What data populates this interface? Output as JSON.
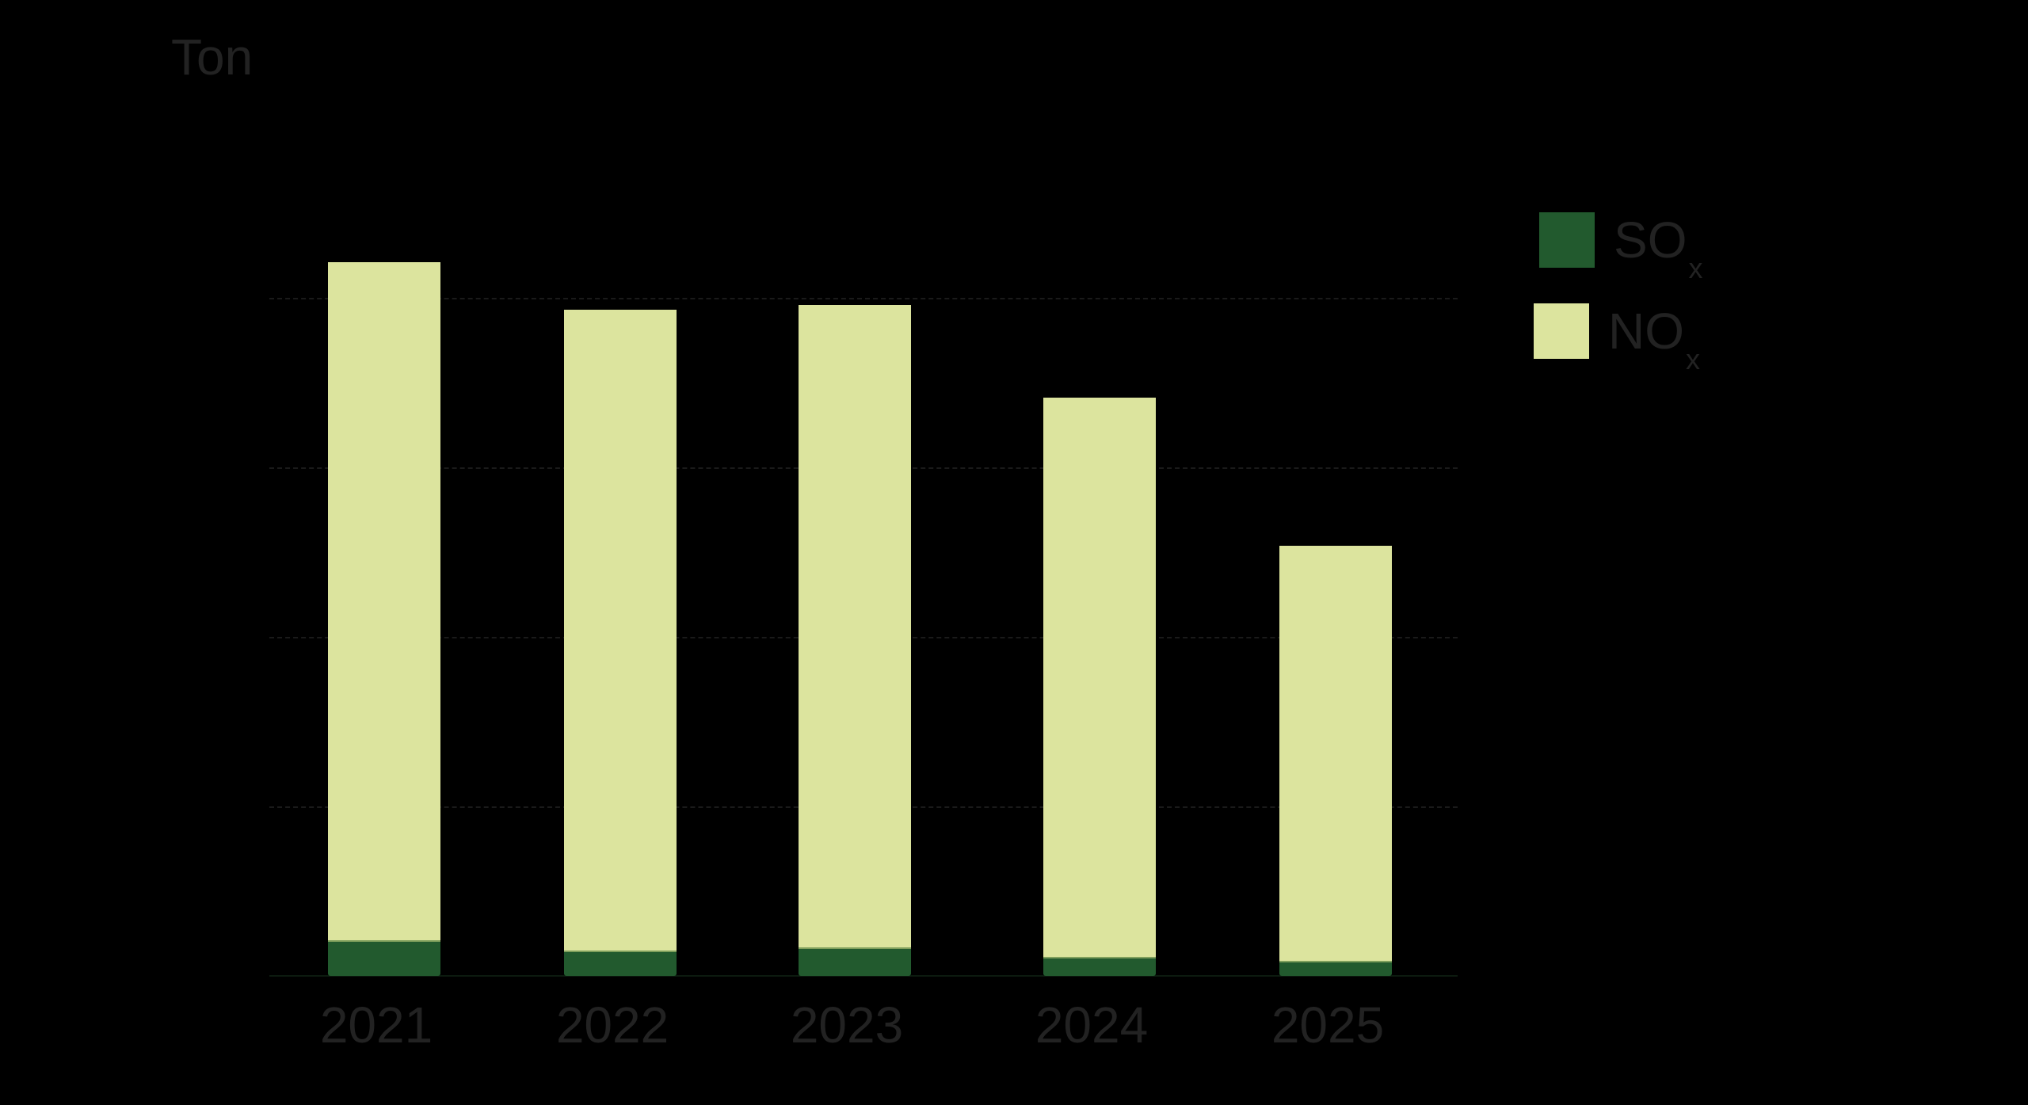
{
  "chart_data": {
    "type": "bar",
    "stacked": true,
    "title": "",
    "xlabel": "",
    "ylabel": "Ton",
    "y_unit_label": "Ton",
    "y_tick_labels_visible": false,
    "value_units_note": "values in gridline units (no tick labels shown)",
    "gridlines": [
      1,
      2,
      3,
      4
    ],
    "grid": true,
    "ylim": [
      0,
      4.3
    ],
    "categories": [
      "2021",
      "2022",
      "2023",
      "2024",
      "2025"
    ],
    "series": [
      {
        "name": "SOx",
        "base": "SO",
        "subscript": "x",
        "color": "#225A2E",
        "values": [
          0.21,
          0.15,
          0.17,
          0.11,
          0.09
        ]
      },
      {
        "name": "NOx",
        "base": "NO",
        "subscript": "x",
        "color": "#DCE49E",
        "values": [
          4.0,
          3.78,
          3.79,
          3.3,
          2.45
        ]
      }
    ],
    "totals": [
      4.21,
      3.93,
      3.96,
      3.41,
      2.54
    ],
    "legend_position": "right-top"
  },
  "colors": {
    "background": "#000000",
    "text": "#222222",
    "sox": "#225A2E",
    "nox": "#DCE49E"
  },
  "legend": {
    "items": [
      {
        "base": "SO",
        "sub": "x",
        "color": "#225A2E"
      },
      {
        "base": "NO",
        "sub": "x",
        "color": "#DCE49E"
      }
    ]
  }
}
